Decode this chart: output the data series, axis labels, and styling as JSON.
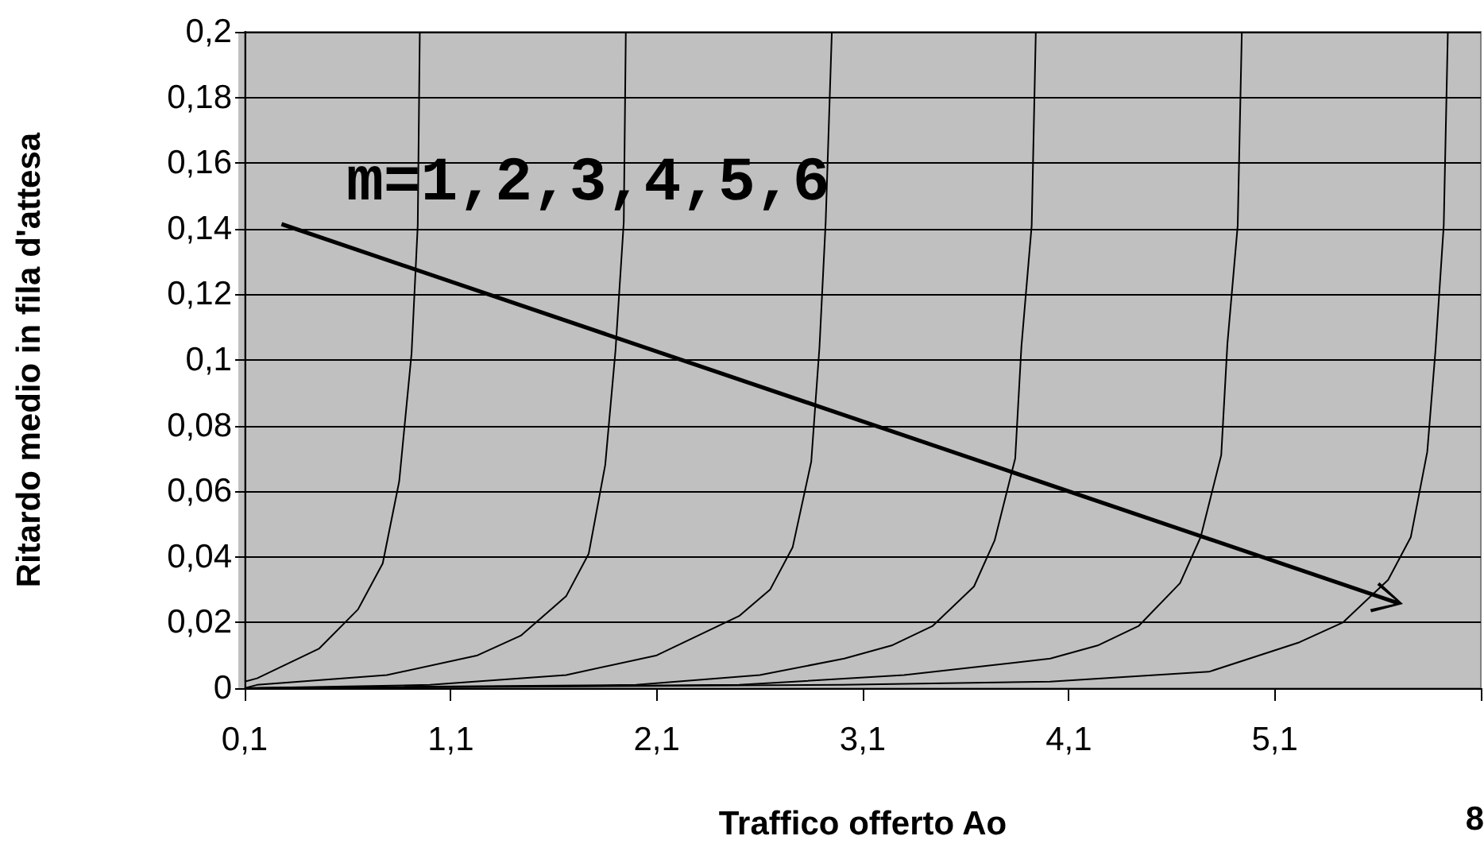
{
  "chart_data": {
    "type": "line",
    "xlabel": "Traffico offerto Ao",
    "ylabel": "Ritardo medio in fila d'attesa",
    "xlim": [
      0.1,
      6.1
    ],
    "ylim": [
      0,
      0.2
    ],
    "xticks": [
      {
        "value": 0.1,
        "label": "0,1"
      },
      {
        "value": 1.1,
        "label": "1,1"
      },
      {
        "value": 2.1,
        "label": "2,1"
      },
      {
        "value": 3.1,
        "label": "3,1"
      },
      {
        "value": 4.1,
        "label": "4,1"
      },
      {
        "value": 5.1,
        "label": "5,1"
      },
      {
        "value": 6.1,
        "label": null
      }
    ],
    "yticks": [
      {
        "value": 0,
        "label": "0"
      },
      {
        "value": 0.02,
        "label": "0,02"
      },
      {
        "value": 0.04,
        "label": "0,04"
      },
      {
        "value": 0.06,
        "label": "0,06"
      },
      {
        "value": 0.08,
        "label": "0,08"
      },
      {
        "value": 0.1,
        "label": "0,1"
      },
      {
        "value": 0.12,
        "label": "0,12"
      },
      {
        "value": 0.14,
        "label": "0,14"
      },
      {
        "value": 0.16,
        "label": "0,16"
      },
      {
        "value": 0.18,
        "label": "0,18"
      },
      {
        "value": 0.2,
        "label": "0,2"
      }
    ],
    "grid": "y",
    "marker": "none",
    "line_style": "solid",
    "series": [
      {
        "color": "#000000",
        "x": [
          0.1,
          0.16,
          0.46,
          0.65,
          0.77,
          0.85,
          0.91,
          0.94,
          0.95
        ],
        "values": [
          0.002,
          0.003,
          0.012,
          0.024,
          0.038,
          0.063,
          0.102,
          0.141,
          0.2
        ]
      },
      {
        "color": "#000000",
        "x": [
          0.1,
          0.16,
          0.79,
          1.23,
          1.44,
          1.66,
          1.77,
          1.85,
          1.9,
          1.94,
          1.95
        ],
        "values": [
          0,
          0.001,
          0.004,
          0.01,
          0.016,
          0.028,
          0.041,
          0.068,
          0.103,
          0.142,
          0.2
        ]
      },
      {
        "color": "#000000",
        "x": [
          0.1,
          1.0,
          1.66,
          2.1,
          2.5,
          2.65,
          2.76,
          2.85,
          2.89,
          2.92,
          2.95
        ],
        "values": [
          0,
          0.001,
          0.004,
          0.01,
          0.022,
          0.03,
          0.043,
          0.069,
          0.104,
          0.142,
          0.2
        ]
      },
      {
        "color": "#000000",
        "x": [
          0.1,
          2.0,
          2.6,
          3.01,
          3.24,
          3.44,
          3.64,
          3.74,
          3.84,
          3.87,
          3.92,
          3.94
        ],
        "values": [
          0,
          0.001,
          0.004,
          0.009,
          0.013,
          0.019,
          0.031,
          0.045,
          0.07,
          0.104,
          0.141,
          0.2
        ]
      },
      {
        "color": "#000000",
        "x": [
          0.1,
          2.5,
          3.3,
          4.01,
          4.24,
          4.44,
          4.64,
          4.74,
          4.84,
          4.87,
          4.92,
          4.94
        ],
        "values": [
          0,
          0.001,
          0.004,
          0.009,
          0.013,
          0.019,
          0.032,
          0.046,
          0.071,
          0.105,
          0.141,
          0.2
        ]
      },
      {
        "color": "#000000",
        "x": [
          0.1,
          3.0,
          4.01,
          4.78,
          5.22,
          5.43,
          5.65,
          5.76,
          5.84,
          5.88,
          5.92,
          5.94
        ],
        "values": [
          0,
          0.001,
          0.002,
          0.005,
          0.014,
          0.02,
          0.033,
          0.046,
          0.072,
          0.103,
          0.141,
          0.2
        ]
      }
    ],
    "annotations": [
      "m=1,2,3,4,5,6",
      "8"
    ]
  }
}
